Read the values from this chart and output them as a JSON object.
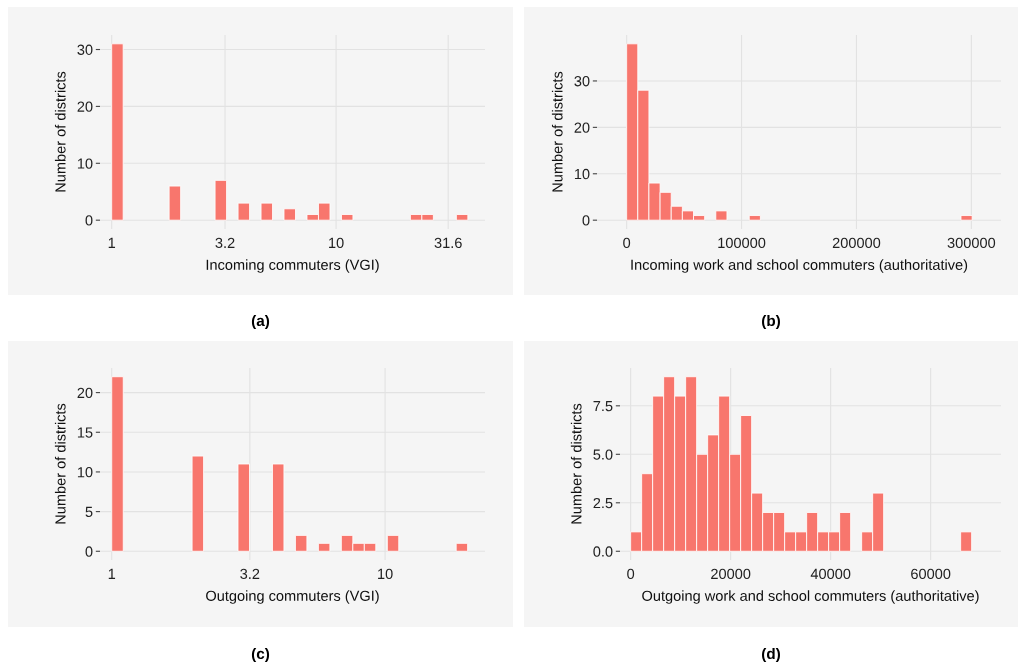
{
  "chart_data": [
    {
      "type": "histogram",
      "title": "(a)",
      "xlabel": "Incoming commuters (VGI)",
      "ylabel": "Number of districts",
      "log": "x",
      "color": "#f8766d",
      "grid": true,
      "bins": [
        1,
        1.125,
        1.266,
        1.424,
        1.603,
        1.803,
        2.029,
        2.283,
        2.568,
        2.889,
        3.251,
        3.658,
        4.116,
        4.631,
        5.21,
        5.861,
        6.595,
        7.42,
        8.348,
        9.393,
        10.57,
        11.89,
        13.38,
        15.05,
        16.93,
        19.05,
        21.44,
        24.12,
        27.14,
        30.53,
        34.36,
        38.66
      ],
      "values": [
        31,
        0,
        0,
        0,
        0,
        6,
        0,
        0,
        0,
        7,
        0,
        3,
        0,
        3,
        0,
        2,
        0,
        1,
        3,
        0,
        1,
        0,
        0,
        0,
        0,
        0,
        1,
        1,
        0,
        0,
        1
      ],
      "xlim": [
        0.887,
        46.1
      ],
      "ylim": [
        -1.55,
        32.55
      ],
      "xticks": [
        1,
        3.2,
        10,
        31.6
      ],
      "yticks": [
        0,
        10,
        20,
        30
      ]
    },
    {
      "type": "histogram",
      "title": "(b)",
      "xlabel": "Incoming work and school commuters (authoritative)",
      "ylabel": "Number of districts",
      "color": "#f8766d",
      "grid": true,
      "bins": [
        0,
        9700,
        19400,
        29100,
        38800,
        48500,
        58200,
        67900,
        77600,
        87300,
        97000,
        106700,
        116400,
        126100,
        135800,
        145500,
        155200,
        164900,
        174600,
        184300,
        194000,
        203700,
        213400,
        223100,
        232800,
        242500,
        252200,
        261900,
        271600,
        281300,
        291000,
        300700
      ],
      "values": [
        38,
        28,
        8,
        6,
        3,
        2,
        1,
        0,
        2,
        0,
        0,
        1,
        0,
        0,
        0,
        0,
        0,
        0,
        0,
        0,
        0,
        0,
        0,
        0,
        0,
        0,
        0,
        0,
        0,
        0,
        1
      ],
      "xlim": [
        -25800,
        325800
      ],
      "ylim": [
        -1.9,
        39.9
      ],
      "xticks": [
        0,
        100000,
        200000,
        300000
      ],
      "yticks": [
        0,
        10,
        20,
        30
      ]
    },
    {
      "type": "histogram",
      "title": "(c)",
      "xlabel": "Outgoing commuters (VGI)",
      "ylabel": "Number of districts",
      "log": "x",
      "color": "#f8766d",
      "grid": true,
      "bins": [
        1,
        1.102,
        1.213,
        1.337,
        1.472,
        1.622,
        1.786,
        1.968,
        2.168,
        2.388,
        2.63,
        2.897,
        3.192,
        3.516,
        3.873,
        4.266,
        4.699,
        5.176,
        5.702,
        6.281,
        6.918,
        7.621,
        8.395,
        9.247,
        10.19,
        11.22,
        12.36,
        13.61,
        15.0,
        16.52,
        18.2,
        20.04
      ],
      "values": [
        22,
        0,
        0,
        0,
        0,
        0,
        0,
        12,
        0,
        0,
        0,
        11,
        0,
        0,
        11,
        0,
        2,
        0,
        1,
        0,
        2,
        1,
        1,
        0,
        2,
        0,
        0,
        0,
        0,
        0,
        1
      ],
      "xlim": [
        0.906,
        23.2
      ],
      "ylim": [
        -1.1,
        23.1
      ],
      "xticks": [
        1,
        3.2,
        10
      ],
      "yticks": [
        0,
        5,
        10,
        15,
        20
      ]
    },
    {
      "type": "histogram",
      "title": "(d)",
      "xlabel": "Outgoing work and school commuters (authoritative)",
      "ylabel": "Number of districts",
      "color": "#f8766d",
      "grid": true,
      "bins": [
        0,
        2200,
        4400,
        6600,
        8800,
        11000,
        13200,
        15400,
        17600,
        19800,
        22000,
        24200,
        26400,
        28600,
        30800,
        33000,
        35200,
        37400,
        39600,
        41800,
        44000,
        46200,
        48400,
        50600,
        52800,
        55000,
        57200,
        59400,
        61600,
        63800,
        66000,
        68200
      ],
      "values": [
        1,
        4,
        8,
        9,
        8,
        9,
        5,
        6,
        8,
        5,
        7,
        3,
        2,
        2,
        1,
        1,
        2,
        1,
        1,
        2,
        0,
        1,
        3,
        0,
        0,
        0,
        0,
        0,
        0,
        0,
        1
      ],
      "xlim": [
        -2130,
        74070
      ],
      "ylim": [
        -0.45,
        9.45
      ],
      "xticks": [
        0,
        20000,
        40000,
        60000
      ],
      "yticks": [
        {
          "value": 0,
          "label": "0.0"
        },
        {
          "value": 2.5,
          "label": "2.5"
        },
        {
          "value": 5,
          "label": "5.0"
        },
        {
          "value": 7.5,
          "label": "7.5"
        }
      ]
    }
  ]
}
